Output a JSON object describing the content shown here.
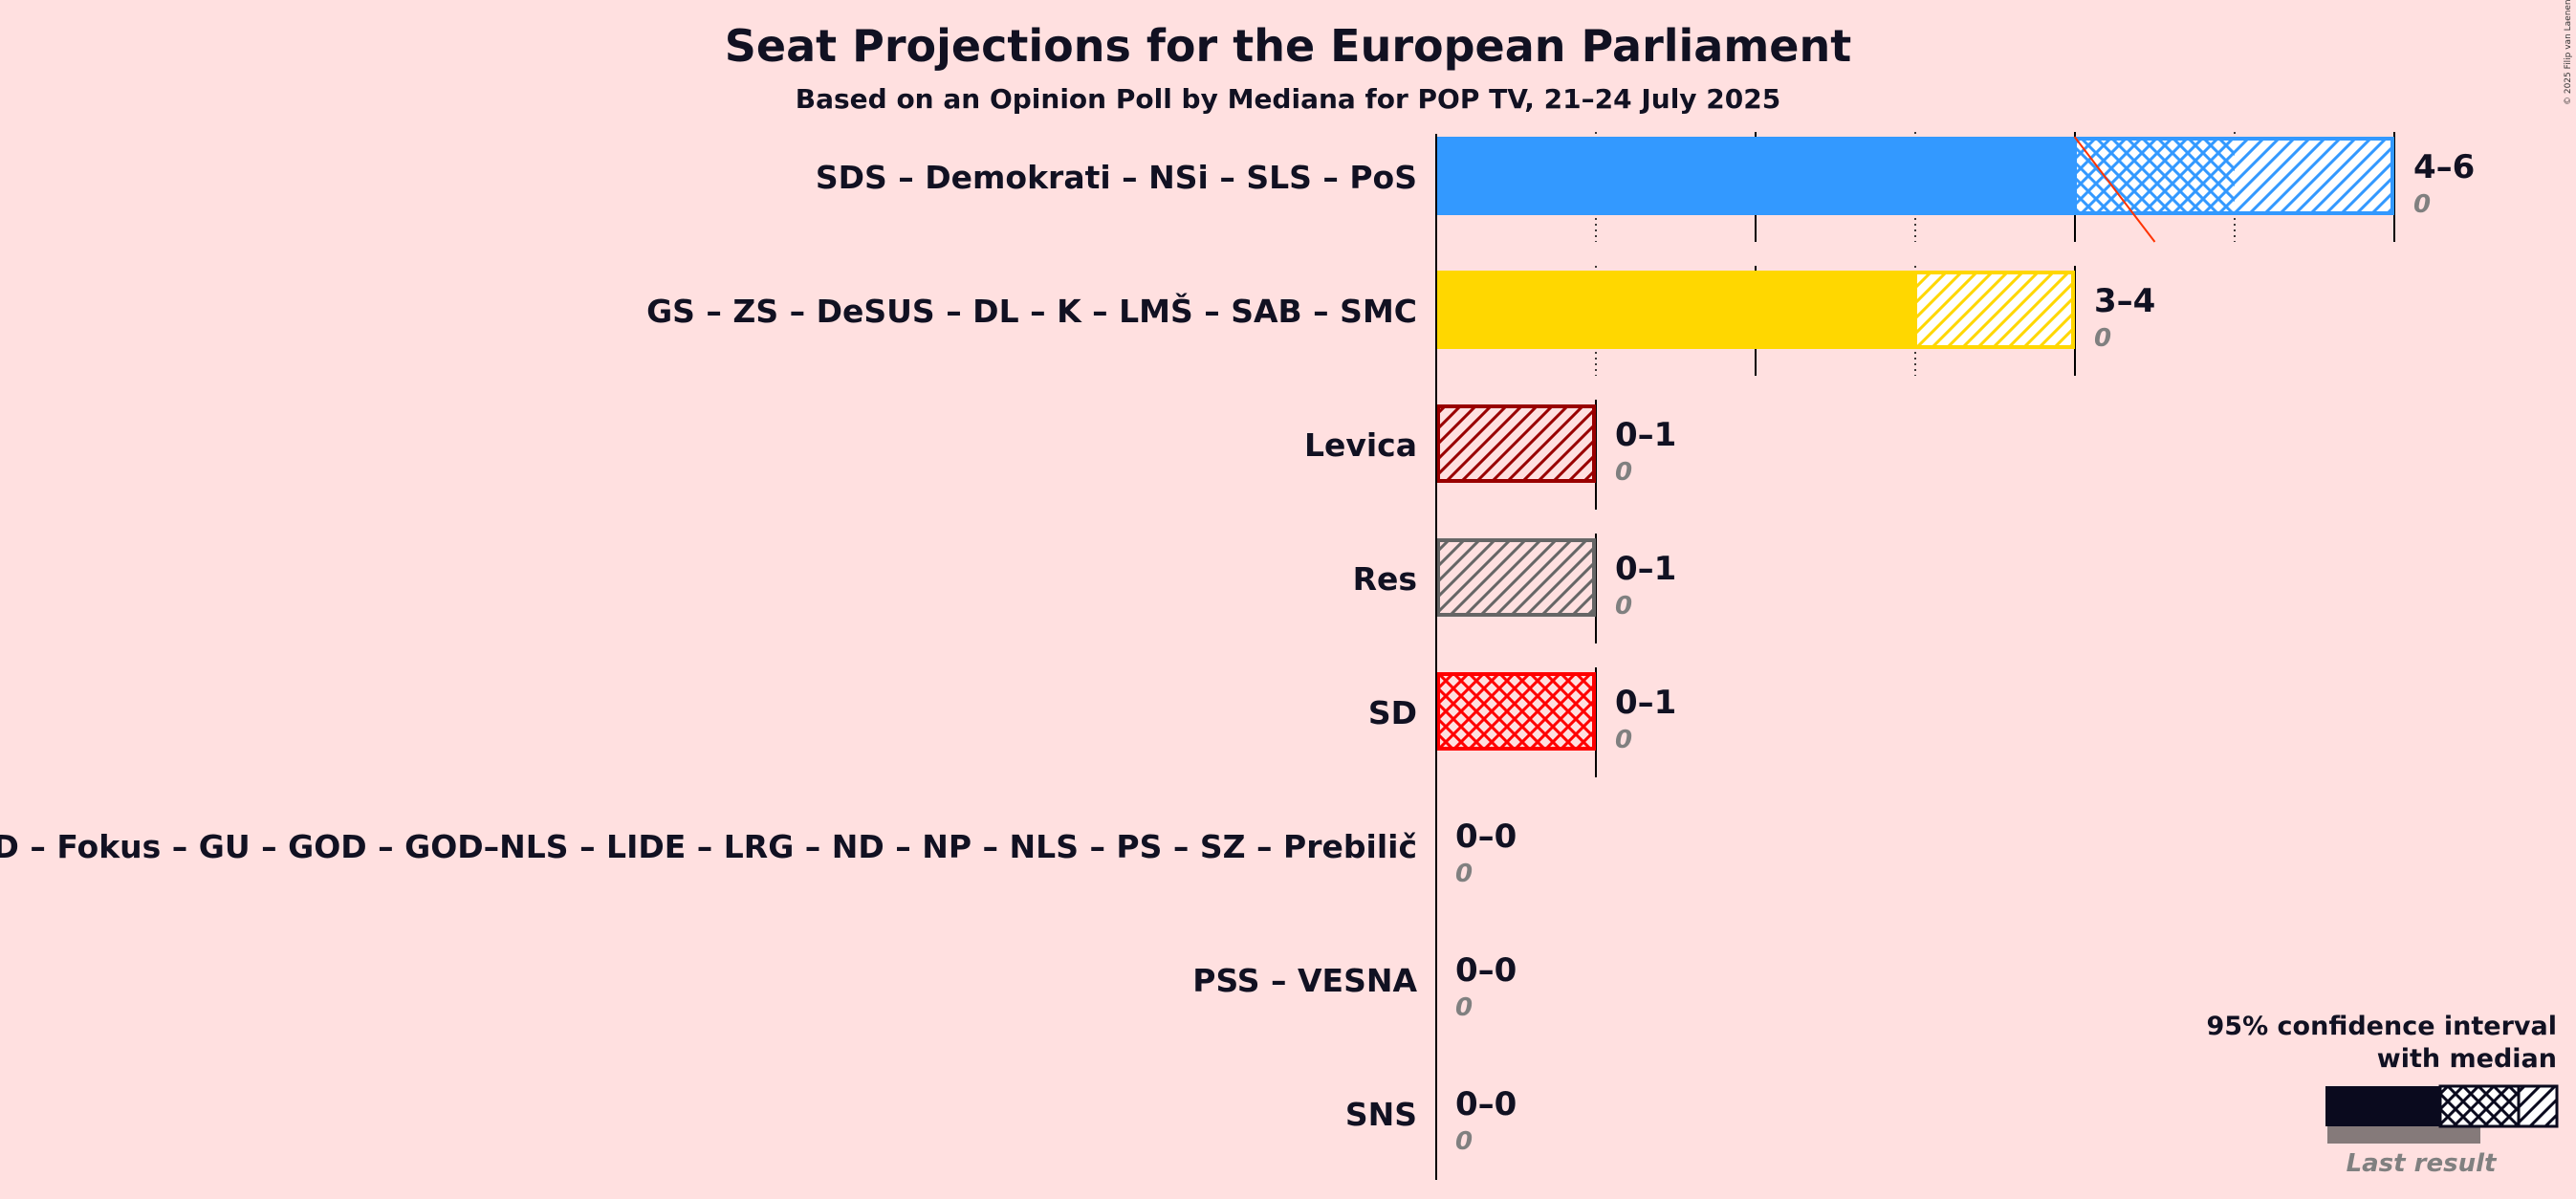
{
  "title": "Seat Projections for the European Parliament",
  "subtitle": "Based on an Opinion Poll by Mediana for POP TV, 21–24 July 2025",
  "copyright": "© 2025 Filip van Laenen",
  "legend": {
    "title_line1": "95% confidence interval",
    "title_line2": "with median",
    "last_result": "Last result"
  },
  "chart_data": {
    "type": "bar",
    "orientation": "horizontal",
    "title": "Seat Projections for the European Parliament",
    "subtitle": "Based on an Opinion Poll by Mediana for POP TV, 21–24 July 2025",
    "majority_line": 4.5,
    "series": [
      {
        "name": "SDS – Demokrati – NSi – SLS – PoS",
        "color": "#3399FF",
        "low": 4,
        "median": 4,
        "high": 6,
        "ci_inner_high": 5,
        "range_label": "4–6",
        "last_result": 0,
        "last_label": "0"
      },
      {
        "name": "GS – ZS – DeSUS – DL – K – LMŠ – SAB – SMC",
        "color": "#FFD700",
        "low": 3,
        "median": 3,
        "high": 4,
        "ci_inner_high": 3,
        "range_label": "3–4",
        "last_result": 0,
        "last_label": "0"
      },
      {
        "name": "Levica",
        "color": "#990000",
        "low": 0,
        "median": 0,
        "high": 1,
        "ci_inner_high": 0,
        "range_label": "0–1",
        "last_result": 0,
        "last_label": "0"
      },
      {
        "name": "Res",
        "color": "#666666",
        "low": 0,
        "median": 0,
        "high": 1,
        "ci_inner_high": 0,
        "range_label": "0–1",
        "last_result": 0,
        "last_label": "0"
      },
      {
        "name": "SD",
        "color": "#FF0000",
        "low": 0,
        "median": 0,
        "high": 1,
        "ci_inner_high": 1,
        "range_label": "0–1",
        "last_result": 0,
        "last_label": "0"
      },
      {
        "name": "DD – Fokus – GU – GOD – GOD–NLS – LIDE – LRG – ND – NP – NLS – PS – SZ – Prebilič",
        "color": "#999999",
        "low": 0,
        "median": 0,
        "high": 0,
        "ci_inner_high": 0,
        "range_label": "0–0",
        "last_result": 0,
        "last_label": "0"
      },
      {
        "name": "PSS – VESNA",
        "color": "#999999",
        "low": 0,
        "median": 0,
        "high": 0,
        "ci_inner_high": 0,
        "range_label": "0–0",
        "last_result": 0,
        "last_label": "0"
      },
      {
        "name": "SNS",
        "color": "#999999",
        "low": 0,
        "median": 0,
        "high": 0,
        "ci_inner_high": 0,
        "range_label": "0–0",
        "last_result": 0,
        "last_label": "0"
      }
    ]
  }
}
